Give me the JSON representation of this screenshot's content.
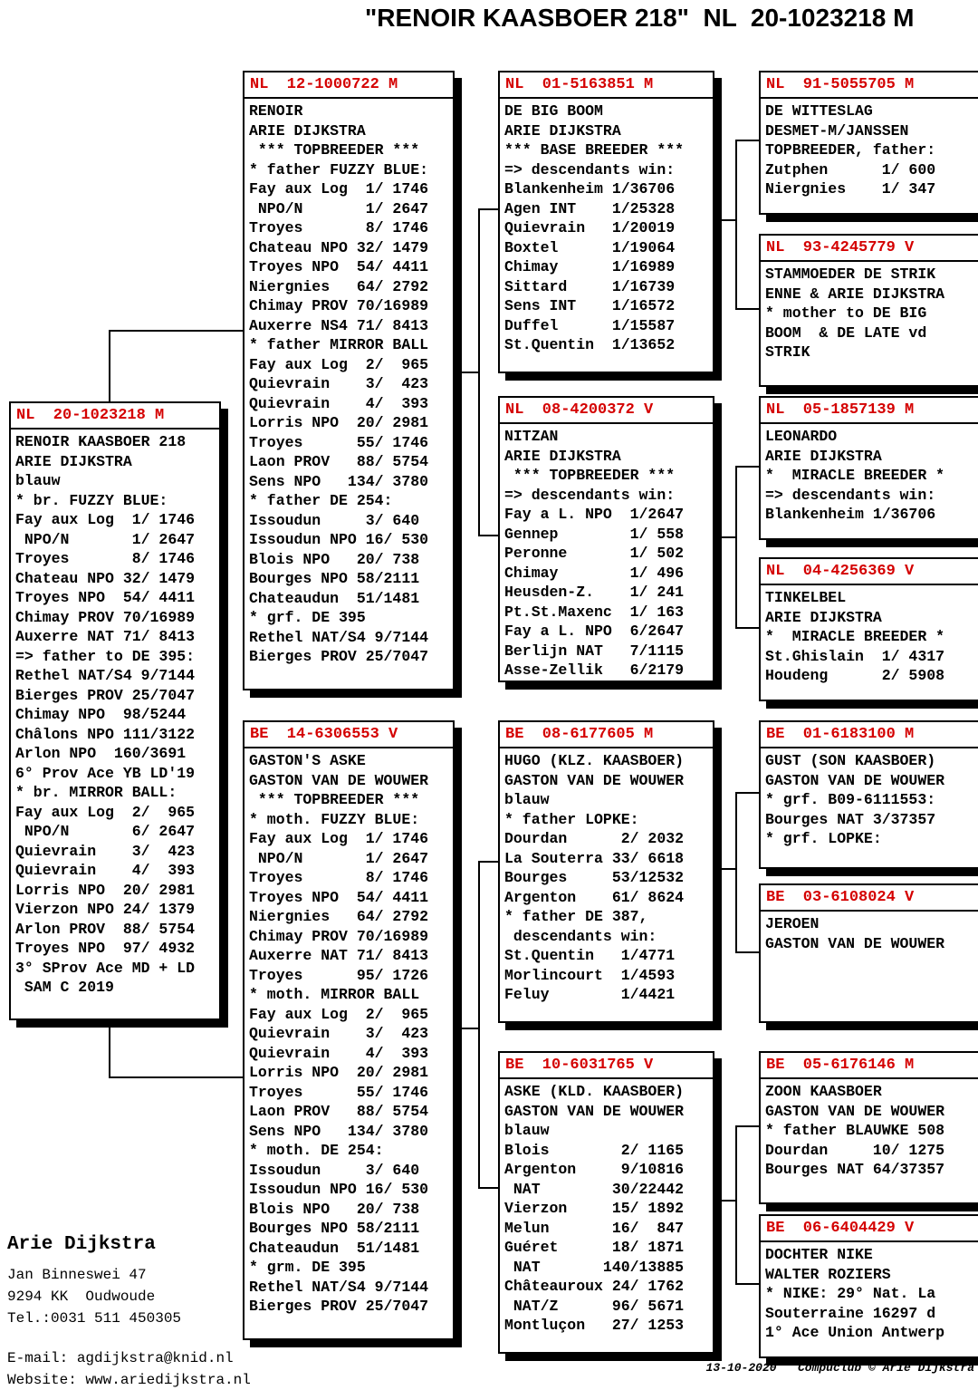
{
  "title": "\"RENOIR KAASBOER 218\"  NL  20-1023218 M",
  "colors": {
    "ring_red": "#d40000",
    "line_black": "#000000"
  },
  "boxes": [
    {
      "key": "subject",
      "ring": "NL  20-1023218 M",
      "lines": [
        "RENOIR KAASBOER 218",
        "ARIE DIJKSTRA",
        "blauw",
        "* br. FUZZY BLUE:",
        "Fay aux Log  1/ 1746",
        " NPO/N       1/ 2647",
        "Troyes       8/ 1746",
        "Chateau NPO 32/ 1479",
        "Troyes NPO  54/ 4411",
        "Chimay PROV 70/16989",
        "Auxerre NAT 71/ 8413",
        "=> father to DE 395:",
        "Rethel NAT/S4 9/7144",
        "Bierges PROV 25/7047",
        "Chimay NPO  98/5244",
        "Châlons NPO 111/3122",
        "Arlon NPO  160/3691",
        "6° Prov Ace YB LD'19",
        "* br. MIRROR BALL:",
        "Fay aux Log  2/  965",
        " NPO/N       6/ 2647",
        "Quievrain    3/  423",
        "Quievrain    4/  393",
        "Lorris NPO  20/ 2981",
        "Vierzon NPO 24/ 1379",
        "Arlon PROV  88/ 5754",
        "Troyes NPO  97/ 4932",
        "3° SProv Ace MD + LD",
        " SAM C 2019"
      ]
    },
    {
      "key": "sire",
      "ring": "NL  12-1000722 M",
      "lines": [
        "RENOIR",
        "ARIE DIJKSTRA",
        " *** TOPBREEDER ***",
        "* father FUZZY BLUE:",
        "Fay aux Log  1/ 1746",
        " NPO/N       1/ 2647",
        "Troyes       8/ 1746",
        "Chateau NPO 32/ 1479",
        "Troyes NPO  54/ 4411",
        "Niergnies   64/ 2792",
        "Chimay PROV 70/16989",
        "Auxerre NS4 71/ 8413",
        "* father MIRROR BALL",
        "Fay aux Log  2/  965",
        "Quievrain    3/  423",
        "Quievrain    4/  393",
        "Lorris NPO  20/ 2981",
        "Troyes      55/ 1746",
        "Laon PROV   88/ 5754",
        "Sens NPO   134/ 3780",
        "* father DE 254:",
        "Issoudun     3/ 640",
        "Issoudun NPO 16/ 530",
        "Blois NPO   20/ 738",
        "Bourges NPO 58/2111",
        "Chateaudun  51/1481",
        "* grf. DE 395",
        "Rethel NAT/S4 9/7144",
        "Bierges PROV 25/7047"
      ]
    },
    {
      "key": "dam",
      "ring": "BE  14-6306553 V",
      "lines": [
        "GASTON'S ASKE",
        "GASTON VAN DE WOUWER",
        " *** TOPBREEDER ***",
        "* moth. FUZZY BLUE:",
        "Fay aux Log  1/ 1746",
        " NPO/N       1/ 2647",
        "Troyes       8/ 1746",
        "Troyes NPO  54/ 4411",
        "Niergnies   64/ 2792",
        "Chimay PROV 70/16989",
        "Auxerre NAT 71/ 8413",
        "Troyes      95/ 1726",
        "* moth. MIRROR BALL",
        "Fay aux Log  2/  965",
        "Quievrain    3/  423",
        "Quievrain    4/  393",
        "Lorris NPO  20/ 2981",
        "Troyes      55/ 1746",
        "Laon PROV   88/ 5754",
        "Sens NPO   134/ 3780",
        "* moth. DE 254:",
        "Issoudun     3/ 640",
        "Issoudun NPO 16/ 530",
        "Blois NPO   20/ 738",
        "Bourges NPO 58/2111",
        "Chateaudun  51/1481",
        "* grm. DE 395",
        "Rethel NAT/S4 9/7144",
        "Bierges PROV 25/7047"
      ]
    },
    {
      "key": "sire-sire",
      "ring": "NL  01-5163851 M",
      "lines": [
        "DE BIG BOOM",
        "ARIE DIJKSTRA",
        "*** BASE BREEDER ***",
        "=> descendants win:",
        "Blankenheim 1/36706",
        "Agen INT    1/25328",
        "Quievrain   1/20019",
        "Boxtel      1/19064",
        "Chimay      1/16989",
        "Sittard     1/16739",
        "Sens INT    1/16572",
        "Duffel      1/15587",
        "St.Quentin  1/13652"
      ]
    },
    {
      "key": "sire-dam",
      "ring": "NL  08-4200372 V",
      "lines": [
        "NITZAN",
        "ARIE DIJKSTRA",
        " *** TOPBREEDER ***",
        "=> descendants win:",
        "Fay a L. NPO  1/2647",
        "Gennep        1/ 558",
        "Peronne       1/ 502",
        "Chimay        1/ 496",
        "Heusden-Z.    1/ 241",
        "Pt.St.Maxenc  1/ 163",
        "Fay a L. NPO  6/2647",
        "Berlijn NAT   7/1115",
        "Asse-Zellik   6/2179"
      ]
    },
    {
      "key": "dam-sire",
      "ring": "BE  08-6177605 M",
      "lines": [
        "HUGO (KLZ. KAASBOER)",
        "GASTON VAN DE WOUWER",
        "blauw",
        "* father LOPKE:",
        "Dourdan      2/ 2032",
        "La Souterra 33/ 6618",
        "Bourges     53/12532",
        "Argenton    61/ 8624",
        "* father DE 387,",
        " descendants win:",
        "St.Quentin   1/4771",
        "Morlincourt  1/4593",
        "Feluy        1/4421"
      ]
    },
    {
      "key": "dam-dam",
      "ring": "BE  10-6031765 V",
      "lines": [
        "ASKE (KLD. KAASBOER)",
        "GASTON VAN DE WOUWER",
        "blauw",
        "Blois        2/ 1165",
        "Argenton     9/10816",
        " NAT        30/22442",
        "Vierzon     15/ 1892",
        "Melun       16/  847",
        "Guéret      18/ 1871",
        " NAT       140/13885",
        "Châteauroux 24/ 1762",
        " NAT/Z      96/ 5671",
        "Montluçon   27/ 1253"
      ]
    },
    {
      "key": "ss-sire",
      "ring": "NL  91-5055705 M",
      "lines": [
        "DE WITTESLAG",
        "DESMET-M/JANSSEN",
        "TOPBREEDER, father:",
        "Zutphen      1/ 600",
        "Niergnies    1/ 347"
      ]
    },
    {
      "key": "ss-dam",
      "ring": "NL  93-4245779 V",
      "lines": [
        "STAMMOEDER DE STRIK",
        "ENNE & ARIE DIJKSTRA",
        "* mother to DE BIG",
        "BOOM  & DE LATE vd",
        "STRIK"
      ]
    },
    {
      "key": "sd-sire",
      "ring": "NL  05-1857139 M",
      "lines": [
        "LEONARDO",
        "ARIE DIJKSTRA",
        "*  MIRACLE BREEDER *",
        "=> descendants win:",
        "Blankenheim 1/36706"
      ]
    },
    {
      "key": "sd-dam",
      "ring": "NL  04-4256369 V",
      "lines": [
        "TINKELBEL",
        "ARIE DIJKSTRA",
        "*  MIRACLE BREEDER *",
        "St.Ghislain  1/ 4317",
        "Houdeng      2/ 5908"
      ]
    },
    {
      "key": "ds-sire",
      "ring": "BE  01-6183100 M",
      "lines": [
        "GUST (SON KAASBOER)",
        "GASTON VAN DE WOUWER",
        "* grf. B09-6111553:",
        "Bourges NAT 3/37357",
        "* grf. LOPKE:"
      ]
    },
    {
      "key": "ds-dam",
      "ring": "BE  03-6108024 V",
      "lines": [
        "JEROEN",
        "GASTON VAN DE WOUWER"
      ]
    },
    {
      "key": "dd-sire",
      "ring": "BE  05-6176146 M",
      "lines": [
        "ZOON KAASBOER",
        "GASTON VAN DE WOUWER",
        "* father BLAUWKE 508",
        "Dourdan     10/ 1275",
        "Bourges NAT 64/37357"
      ]
    },
    {
      "key": "dd-dam",
      "ring": "BE  06-6404429 V",
      "lines": [
        "DOCHTER NIKE",
        "WALTER ROZIERS",
        "* NIKE: 29° Nat. La",
        "Souterraine 16297 d",
        "1° Ace Union Antwerp"
      ]
    }
  ],
  "footer": {
    "owner": "Arie Dijkstra",
    "address1": "Jan Binneswei 47",
    "address2": "9294 KK  Oudwoude",
    "phone": "Tel.:0031 511 450305",
    "email": "E-mail: agdijkstra@knid.nl",
    "website": "Website: www.ariedijkstra.nl",
    "generated": "13-10-2020   Compuclub © Arie Dijkstra"
  }
}
